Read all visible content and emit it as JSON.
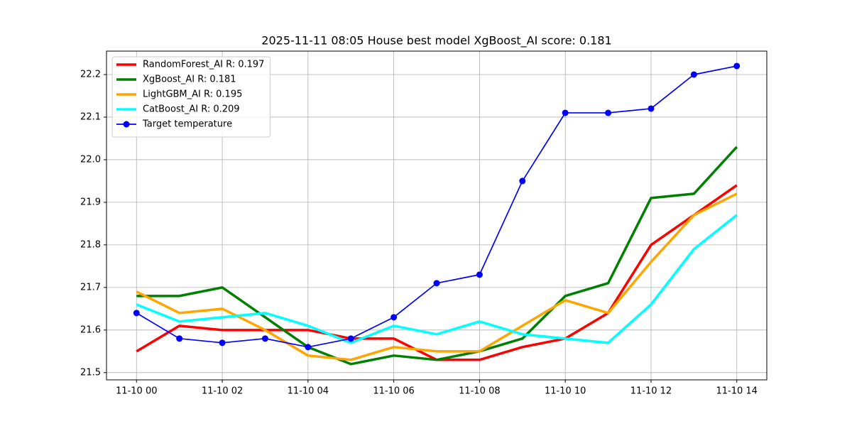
{
  "chart_data": {
    "type": "line",
    "title": "2025-11-11 08:05 House best model XgBoost_AI score: 0.181",
    "categories": [
      "11-10 00",
      null,
      "11-10 02",
      null,
      "11-10 04",
      null,
      "11-10 06",
      null,
      "11-10 08",
      null,
      "11-10 10",
      null,
      "11-10 12",
      null,
      "11-10 14"
    ],
    "series": [
      {
        "name": "RandomForest_AI R: 0.197",
        "color": "#ff0000",
        "width": 3.5,
        "values": [
          21.55,
          21.61,
          21.6,
          21.6,
          21.6,
          21.58,
          21.58,
          21.53,
          21.53,
          21.56,
          21.58,
          21.64,
          21.8,
          21.87,
          21.94
        ]
      },
      {
        "name": "XgBoost_AI R: 0.181",
        "color": "#008000",
        "width": 3.5,
        "values": [
          21.68,
          21.68,
          21.7,
          21.63,
          21.56,
          21.52,
          21.54,
          21.53,
          21.55,
          21.58,
          21.68,
          21.71,
          21.91,
          21.92,
          22.03
        ]
      },
      {
        "name": "LightGBM_AI R: 0.195",
        "color": "#ffa500",
        "width": 3.5,
        "values": [
          21.69,
          21.64,
          21.65,
          21.6,
          21.54,
          21.53,
          21.56,
          21.55,
          21.55,
          21.61,
          21.67,
          21.64,
          21.76,
          21.87,
          21.92
        ]
      },
      {
        "name": "CatBoost_AI R: 0.209",
        "color": "#00ffff",
        "width": 3.5,
        "values": [
          21.66,
          21.62,
          21.63,
          21.64,
          21.61,
          21.57,
          21.61,
          21.59,
          21.62,
          21.59,
          21.58,
          21.57,
          21.66,
          21.79,
          21.87
        ]
      },
      {
        "name": "Target temperature",
        "color": "#0000ff",
        "width": 1.7,
        "marker": "o",
        "values": [
          21.64,
          21.58,
          21.57,
          21.58,
          21.56,
          21.58,
          21.63,
          21.71,
          21.73,
          21.95,
          22.11,
          22.11,
          22.12,
          22.2,
          22.22
        ]
      }
    ],
    "xlim": [
      -0.7,
      14.7
    ],
    "ylim": [
      21.483,
      22.255
    ],
    "yticks": [
      21.5,
      21.6,
      21.7,
      21.8,
      21.9,
      {
        "value": 22,
        "label": "22.0"
      },
      22.1,
      22.2
    ],
    "grid": true,
    "legend": "upper-left"
  }
}
